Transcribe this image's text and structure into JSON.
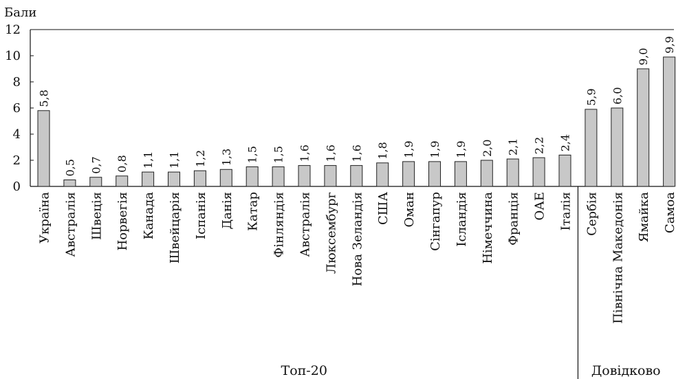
{
  "chart_data": {
    "type": "bar",
    "ylabel": "Бали",
    "ylim": [
      0,
      12
    ],
    "yticks": [
      "0",
      "2",
      "4",
      "6",
      "8",
      "10",
      "12"
    ],
    "categories": [
      "Україна",
      "Австралія",
      "Швеція",
      "Норвегія",
      "Канада",
      "Швейцарія",
      "Іспанія",
      "Данія",
      "Катар",
      "Фінляндія",
      "Австралія",
      "Люксембург",
      "Нова Зеландія",
      "США",
      "Оман",
      "Сінгапур",
      "Ісландія",
      "Німеччина",
      "Франція",
      "ОАЕ",
      "Італія",
      "Сербія",
      "Північна Македонія",
      "Ямайка",
      "Самоа"
    ],
    "values": [
      5.8,
      0.5,
      0.7,
      0.8,
      1.1,
      1.1,
      1.2,
      1.3,
      1.5,
      1.5,
      1.6,
      1.6,
      1.6,
      1.8,
      1.9,
      1.9,
      1.9,
      2.0,
      2.1,
      2.2,
      2.4,
      5.9,
      6.0,
      9.0,
      9.9
    ],
    "value_labels": [
      "5,8",
      "0,5",
      "0,7",
      "0,8",
      "1,1",
      "1,1",
      "1,2",
      "1,3",
      "1,5",
      "1,5",
      "1,6",
      "1,6",
      "1,6",
      "1,8",
      "1,9",
      "1,9",
      "1,9",
      "2,0",
      "2,1",
      "2,2",
      "2,4",
      "5,9",
      "6,0",
      "9,0",
      "9,9"
    ],
    "groups": [
      {
        "label": "Топ-20",
        "start": 0,
        "end": 20
      },
      {
        "label": "Довідково",
        "start": 21,
        "end": 24
      }
    ],
    "bar_color": "#c8c8c8",
    "grid": false
  }
}
